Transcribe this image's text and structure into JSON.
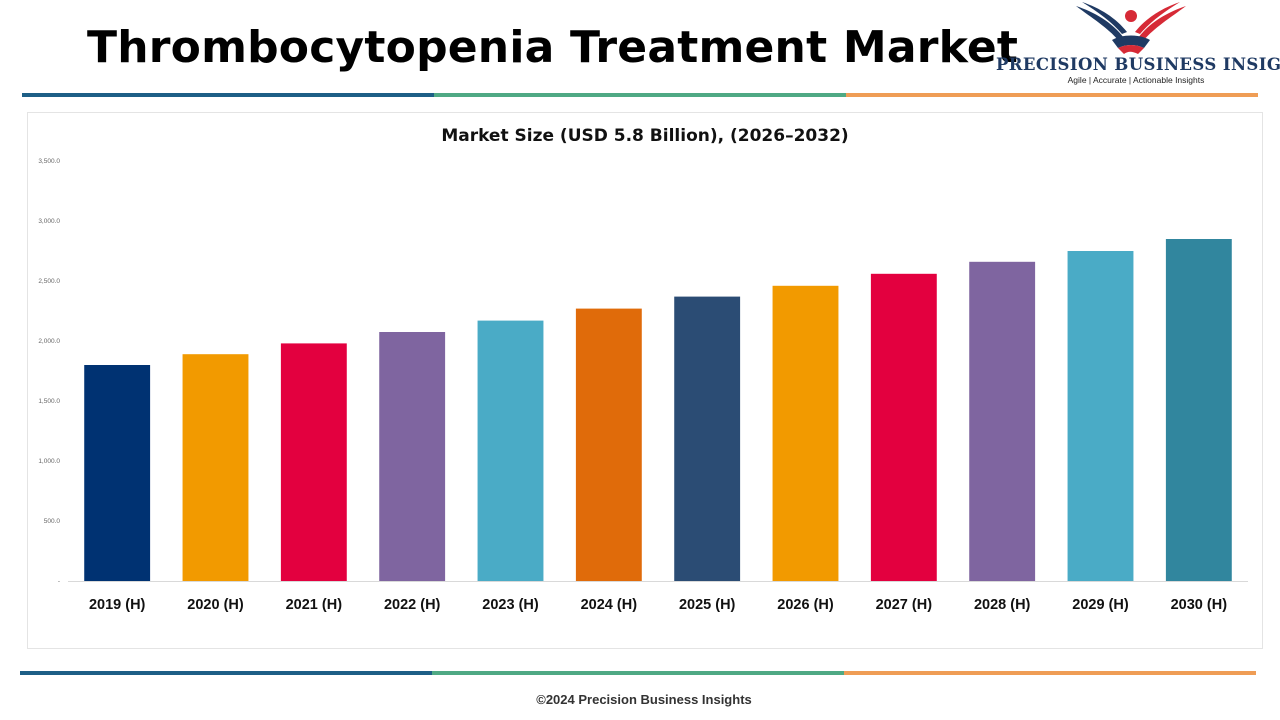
{
  "header": {
    "title": "Thrombocytopenia Treatment Market"
  },
  "logo": {
    "name": "PRECISION BUSINESS INSIGHTS",
    "tagline": "Agile | Accurate | Actionable Insights",
    "icon": "eagle-handshake-icon",
    "colors": {
      "navy": "#1f3a63",
      "red": "#d62a36"
    }
  },
  "stripe_colors": [
    "#1d5f86",
    "#4fa984",
    "#ef9d55"
  ],
  "footer": {
    "copyright": "©2024 Precision Business Insights"
  },
  "chart_data": {
    "type": "bar",
    "title": "Market Size (USD 5.8 Billion), (2026–2032)",
    "xlabel": "",
    "ylabel": "",
    "categories": [
      "2019 (H)",
      "2020 (H)",
      "2021 (H)",
      "2022 (H)",
      "2023 (H)",
      "2024 (H)",
      "2025 (H)",
      "2026 (H)",
      "2027 (H)",
      "2028 (H)",
      "2029 (H)",
      "2030 (H)"
    ],
    "values": [
      1800,
      1890,
      1980,
      2075,
      2170,
      2270,
      2370,
      2460,
      2560,
      2660,
      2750,
      2850
    ],
    "bar_colors": [
      "#003272",
      "#f29a00",
      "#e3003f",
      "#7f65a0",
      "#4aabc6",
      "#e06b0a",
      "#2b4c74",
      "#f29a00",
      "#e3003f",
      "#7f65a0",
      "#4aabc6",
      "#31869e"
    ],
    "ylim": [
      0,
      3500
    ],
    "yticks": [
      0,
      500,
      1000,
      1500,
      2000,
      2500,
      3000,
      3500
    ],
    "ytick_labels": [
      "-",
      "500.0",
      "1,000.0",
      "1,500.0",
      "2,000.0",
      "2,500.0",
      "3,000.0",
      "3,500.0"
    ],
    "grid": false,
    "legend": "none"
  }
}
